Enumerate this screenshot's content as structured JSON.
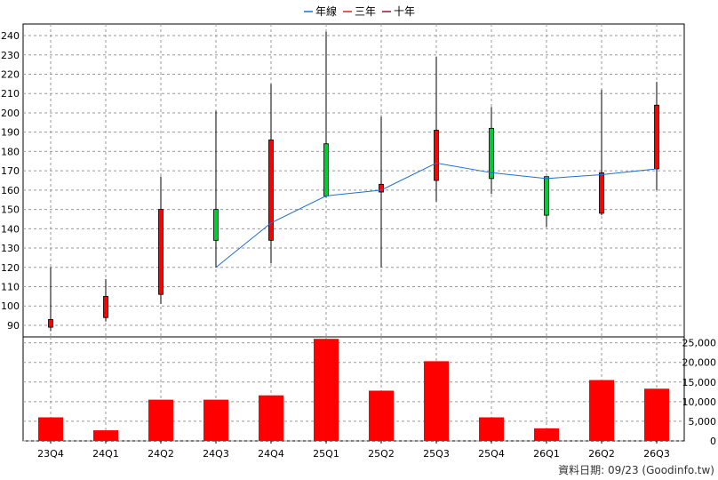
{
  "legend": [
    {
      "label": "年線",
      "color": "#1f6fd0"
    },
    {
      "label": "三年",
      "color": "#e02020"
    },
    {
      "label": "十年",
      "color": "#a01030"
    }
  ],
  "footer": "資料日期: 09/23  (Goodinfo.tw)",
  "colors": {
    "up": "#ff0000",
    "down": "#00cc33",
    "volume": "#ff0000",
    "ma_line": "#1f6fd0"
  },
  "chart_data": [
    {
      "type": "candlestick",
      "title": "",
      "categories": [
        "23Q4",
        "24Q1",
        "24Q2",
        "24Q3",
        "24Q4",
        "25Q1",
        "25Q2",
        "25Q3",
        "25Q4",
        "26Q1",
        "26Q2",
        "26Q3"
      ],
      "ylim": [
        84,
        246
      ],
      "yticks": [
        90,
        100,
        110,
        120,
        130,
        140,
        150,
        160,
        170,
        180,
        190,
        200,
        210,
        220,
        230,
        240
      ],
      "candles": [
        {
          "open": 89,
          "close": 93,
          "high": 120,
          "low": 87
        },
        {
          "open": 94,
          "close": 105,
          "high": 114,
          "low": 92
        },
        {
          "open": 106,
          "close": 150,
          "high": 167,
          "low": 101
        },
        {
          "open": 150,
          "close": 134,
          "high": 201,
          "low": 120
        },
        {
          "open": 134,
          "close": 186,
          "high": 215,
          "low": 122
        },
        {
          "open": 184,
          "close": 157,
          "high": 242,
          "low": 156
        },
        {
          "open": 159,
          "close": 163,
          "high": 198,
          "low": 120
        },
        {
          "open": 165,
          "close": 191,
          "high": 229,
          "low": 154
        },
        {
          "open": 192,
          "close": 166,
          "high": 203,
          "low": 158
        },
        {
          "open": 167,
          "close": 147,
          "high": 167,
          "low": 141
        },
        {
          "open": 148,
          "close": 169,
          "high": 212,
          "low": 147
        },
        {
          "open": 171,
          "close": 204,
          "high": 216,
          "low": 160
        }
      ],
      "ma_line": {
        "name": "年線",
        "start_index": 3,
        "values": [
          120,
          143,
          157,
          160,
          174,
          169,
          166,
          168,
          171
        ]
      },
      "grid": true
    },
    {
      "type": "bar",
      "categories": [
        "23Q4",
        "24Q1",
        "24Q2",
        "24Q3",
        "24Q4",
        "25Q1",
        "25Q2",
        "25Q3",
        "25Q4",
        "26Q1",
        "26Q2",
        "26Q3"
      ],
      "values": [
        6000,
        2700,
        10500,
        10500,
        11600,
        26000,
        12800,
        20300,
        6000,
        3200,
        15500,
        13300
      ],
      "ylim": [
        0,
        26500
      ],
      "yticks": [
        "0",
        "5,000",
        "10,000",
        "15,000",
        "20,000",
        "25,000"
      ],
      "ytick_values": [
        0,
        5000,
        10000,
        15000,
        20000,
        25000
      ],
      "grid": true
    }
  ]
}
